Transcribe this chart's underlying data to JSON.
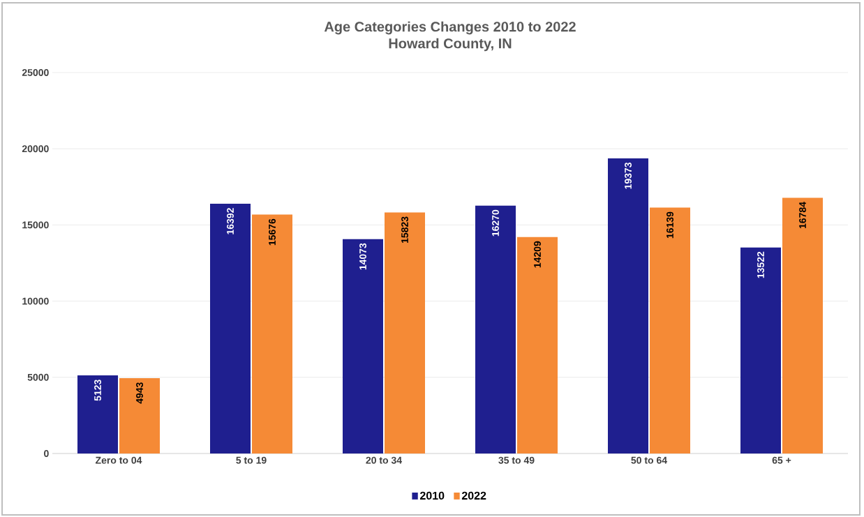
{
  "chart_data": {
    "type": "bar",
    "title": "Age Categories Changes 2010 to 2022",
    "subtitle": "Howard County, IN",
    "categories": [
      "Zero to 04",
      "5 to 19",
      "20 to 34",
      "35 to 49",
      "50 to 64",
      "65 +"
    ],
    "series": [
      {
        "name": "2010",
        "color": "#1f1f8f",
        "values": [
          5123,
          16392,
          14073,
          16270,
          19373,
          13522
        ]
      },
      {
        "name": "2022",
        "color": "#f58a36",
        "values": [
          4943,
          15676,
          15823,
          14209,
          16139,
          16784
        ]
      }
    ],
    "ylim": [
      0,
      25000
    ],
    "yticks": [
      0,
      5000,
      10000,
      15000,
      20000,
      25000
    ],
    "grid": "y",
    "legend": "bottom",
    "data_labels": true
  }
}
